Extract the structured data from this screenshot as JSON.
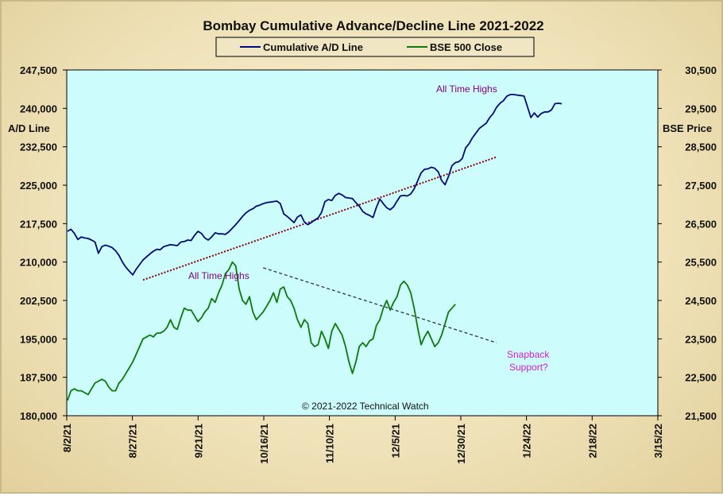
{
  "chart_data": {
    "type": "line",
    "title": "Bombay Cumulative Advance/Decline Line 2021-2022",
    "y_left_label": "A/D Line",
    "y_right_label": "BSE Price",
    "y_left_lim": [
      180000,
      247500
    ],
    "y_right_lim": [
      21500,
      30500
    ],
    "y_left_ticks": [
      "247,500",
      "240,000",
      "232,500",
      "225,000",
      "217,500",
      "210,000",
      "202,500",
      "195,000",
      "187,500",
      "180,000"
    ],
    "y_right_ticks": [
      "30,500",
      "29,500",
      "28,500",
      "27,500",
      "26,500",
      "25,500",
      "24,500",
      "23,500",
      "22,500",
      "21,500"
    ],
    "x_ticks": [
      "8/2/21",
      "8/27/21",
      "9/21/21",
      "10/16/21",
      "11/10/21",
      "12/5/21",
      "12/30/21",
      "1/24/22",
      "2/18/22",
      "3/15/22"
    ],
    "x_lim": [
      "8/2/21",
      "3/15/22"
    ],
    "plot_bg": "#ccfcfc",
    "grid": false,
    "legend": "top-center",
    "copyright": "© 2021-2022  Technical Watch",
    "series": [
      {
        "name": "Cumulative A/D Line",
        "axis": "left",
        "color": "#000a78",
        "points": [
          [
            0,
            216000
          ],
          [
            1,
            216400
          ],
          [
            2,
            215600
          ],
          [
            3,
            214400
          ],
          [
            4,
            214900
          ],
          [
            5,
            214700
          ],
          [
            6,
            214600
          ],
          [
            7,
            214300
          ],
          [
            8,
            213900
          ],
          [
            9,
            211700
          ],
          [
            10,
            213000
          ],
          [
            11,
            213300
          ],
          [
            12,
            213100
          ],
          [
            13,
            212800
          ],
          [
            14,
            212200
          ],
          [
            15,
            211300
          ],
          [
            16,
            210000
          ],
          [
            17,
            209000
          ],
          [
            18,
            208200
          ],
          [
            19,
            207500
          ],
          [
            20,
            208600
          ],
          [
            21,
            209500
          ],
          [
            22,
            210400
          ],
          [
            23,
            211000
          ],
          [
            24,
            211600
          ],
          [
            25,
            212100
          ],
          [
            26,
            212500
          ],
          [
            27,
            212400
          ],
          [
            28,
            213000
          ],
          [
            29,
            213200
          ],
          [
            30,
            213400
          ],
          [
            31,
            213300
          ],
          [
            32,
            213200
          ],
          [
            33,
            213900
          ],
          [
            34,
            214000
          ],
          [
            35,
            214300
          ],
          [
            36,
            214200
          ],
          [
            37,
            215200
          ],
          [
            38,
            216000
          ],
          [
            39,
            215600
          ],
          [
            40,
            214700
          ],
          [
            41,
            214300
          ],
          [
            42,
            214900
          ],
          [
            43,
            215700
          ],
          [
            44,
            215500
          ],
          [
            45,
            215500
          ],
          [
            46,
            215400
          ],
          [
            47,
            215900
          ],
          [
            48,
            216600
          ],
          [
            49,
            217300
          ],
          [
            50,
            218100
          ],
          [
            51,
            218900
          ],
          [
            52,
            219600
          ],
          [
            53,
            220100
          ],
          [
            54,
            220400
          ],
          [
            55,
            220900
          ],
          [
            56,
            221100
          ],
          [
            57,
            221400
          ],
          [
            58,
            221600
          ],
          [
            59,
            221700
          ],
          [
            60,
            221800
          ],
          [
            61,
            221900
          ],
          [
            62,
            221400
          ],
          [
            63,
            219400
          ],
          [
            64,
            218900
          ],
          [
            65,
            218300
          ],
          [
            66,
            217700
          ],
          [
            67,
            218800
          ],
          [
            68,
            219200
          ],
          [
            69,
            217800
          ],
          [
            70,
            217300
          ],
          [
            71,
            217700
          ],
          [
            72,
            218200
          ],
          [
            73,
            218600
          ],
          [
            74,
            219700
          ],
          [
            75,
            221800
          ],
          [
            76,
            222200
          ],
          [
            77,
            222000
          ],
          [
            78,
            223000
          ],
          [
            79,
            223400
          ],
          [
            80,
            223100
          ],
          [
            81,
            222600
          ],
          [
            82,
            222500
          ],
          [
            83,
            222400
          ],
          [
            84,
            221600
          ],
          [
            85,
            220900
          ],
          [
            86,
            219900
          ],
          [
            87,
            219400
          ],
          [
            88,
            219100
          ],
          [
            89,
            218700
          ],
          [
            90,
            220700
          ],
          [
            91,
            222300
          ],
          [
            92,
            221400
          ],
          [
            93,
            220600
          ],
          [
            94,
            220200
          ],
          [
            95,
            220800
          ],
          [
            96,
            221900
          ],
          [
            97,
            222900
          ],
          [
            98,
            223000
          ],
          [
            99,
            222900
          ],
          [
            100,
            223300
          ],
          [
            101,
            224300
          ],
          [
            102,
            225800
          ],
          [
            103,
            227400
          ],
          [
            104,
            228100
          ],
          [
            105,
            228200
          ],
          [
            106,
            228500
          ],
          [
            107,
            228300
          ],
          [
            108,
            227600
          ],
          [
            109,
            225900
          ],
          [
            110,
            225100
          ],
          [
            111,
            226700
          ],
          [
            112,
            228800
          ],
          [
            113,
            229400
          ],
          [
            114,
            229600
          ],
          [
            115,
            230200
          ],
          [
            116,
            232300
          ],
          [
            117,
            233100
          ],
          [
            118,
            234300
          ],
          [
            119,
            235200
          ],
          [
            120,
            236100
          ],
          [
            121,
            236600
          ],
          [
            122,
            237100
          ],
          [
            123,
            238200
          ],
          [
            124,
            239000
          ],
          [
            125,
            240200
          ],
          [
            126,
            241000
          ],
          [
            127,
            241500
          ],
          [
            128,
            242400
          ],
          [
            129,
            242700
          ],
          [
            130,
            242700
          ],
          [
            131,
            242600
          ],
          [
            132,
            242500
          ],
          [
            133,
            242400
          ],
          [
            134,
            240300
          ],
          [
            135,
            238200
          ],
          [
            136,
            239100
          ],
          [
            137,
            238300
          ],
          [
            138,
            239000
          ],
          [
            139,
            239300
          ],
          [
            140,
            239300
          ],
          [
            141,
            239700
          ],
          [
            142,
            240900
          ],
          [
            143,
            241000
          ],
          [
            144,
            240900
          ]
        ]
      },
      {
        "name": "BSE 500 Close",
        "axis": "right",
        "color": "#0b7a0b",
        "points": [
          [
            0,
            21900
          ],
          [
            1,
            22150
          ],
          [
            2,
            22200
          ],
          [
            3,
            22150
          ],
          [
            4,
            22150
          ],
          [
            5,
            22100
          ],
          [
            6,
            22050
          ],
          [
            7,
            22200
          ],
          [
            8,
            22350
          ],
          [
            9,
            22400
          ],
          [
            10,
            22450
          ],
          [
            11,
            22400
          ],
          [
            12,
            22250
          ],
          [
            13,
            22150
          ],
          [
            14,
            22150
          ],
          [
            15,
            22350
          ],
          [
            16,
            22450
          ],
          [
            17,
            22600
          ],
          [
            18,
            22750
          ],
          [
            19,
            22900
          ],
          [
            20,
            23100
          ],
          [
            21,
            23300
          ],
          [
            22,
            23500
          ],
          [
            23,
            23550
          ],
          [
            24,
            23600
          ],
          [
            25,
            23550
          ],
          [
            26,
            23650
          ],
          [
            27,
            23650
          ],
          [
            28,
            23700
          ],
          [
            29,
            23800
          ],
          [
            30,
            24000
          ],
          [
            31,
            23800
          ],
          [
            32,
            23750
          ],
          [
            33,
            24050
          ],
          [
            34,
            24300
          ],
          [
            35,
            24250
          ],
          [
            36,
            24250
          ],
          [
            37,
            24100
          ],
          [
            38,
            23950
          ],
          [
            39,
            24050
          ],
          [
            40,
            24200
          ],
          [
            41,
            24300
          ],
          [
            42,
            24550
          ],
          [
            43,
            24450
          ],
          [
            44,
            24700
          ],
          [
            45,
            24900
          ],
          [
            46,
            25200
          ],
          [
            47,
            25300
          ],
          [
            48,
            25500
          ],
          [
            49,
            25400
          ],
          [
            50,
            24800
          ],
          [
            51,
            24500
          ],
          [
            52,
            24400
          ],
          [
            53,
            24600
          ],
          [
            54,
            24200
          ],
          [
            55,
            24000
          ],
          [
            56,
            24100
          ],
          [
            57,
            24200
          ],
          [
            58,
            24350
          ],
          [
            59,
            24500
          ],
          [
            60,
            24700
          ],
          [
            61,
            24450
          ],
          [
            62,
            24800
          ],
          [
            63,
            24850
          ],
          [
            64,
            24600
          ],
          [
            65,
            24500
          ],
          [
            66,
            24300
          ],
          [
            67,
            24000
          ],
          [
            68,
            23800
          ],
          [
            69,
            24000
          ],
          [
            70,
            23900
          ],
          [
            71,
            23400
          ],
          [
            72,
            23300
          ],
          [
            73,
            23350
          ],
          [
            74,
            23700
          ],
          [
            75,
            23500
          ],
          [
            76,
            23250
          ],
          [
            77,
            23700
          ],
          [
            78,
            23900
          ],
          [
            79,
            23750
          ],
          [
            80,
            23600
          ],
          [
            81,
            23300
          ],
          [
            82,
            22900
          ],
          [
            83,
            22600
          ],
          [
            84,
            22900
          ],
          [
            85,
            23300
          ],
          [
            86,
            23400
          ],
          [
            87,
            23300
          ],
          [
            88,
            23450
          ],
          [
            89,
            23500
          ],
          [
            90,
            23850
          ],
          [
            91,
            24000
          ],
          [
            92,
            24300
          ],
          [
            93,
            24500
          ],
          [
            94,
            24250
          ],
          [
            95,
            24450
          ],
          [
            96,
            24600
          ],
          [
            97,
            24900
          ],
          [
            98,
            25000
          ],
          [
            99,
            24900
          ],
          [
            100,
            24700
          ],
          [
            101,
            24300
          ],
          [
            102,
            23800
          ],
          [
            103,
            23350
          ],
          [
            104,
            23550
          ],
          [
            105,
            23700
          ],
          [
            106,
            23500
          ],
          [
            107,
            23300
          ],
          [
            108,
            23400
          ],
          [
            109,
            23600
          ],
          [
            110,
            23900
          ],
          [
            111,
            24200
          ],
          [
            112,
            24300
          ],
          [
            113,
            24400
          ]
        ]
      }
    ],
    "trendlines": [
      {
        "axis": "left",
        "style": "dotted",
        "color": "#8b0000",
        "from": [
          22,
          206500
        ],
        "to": [
          125,
          230500
        ]
      },
      {
        "axis": "right",
        "style": "dashed",
        "color": "#333333",
        "from": [
          57,
          25350
        ],
        "to": [
          125,
          23400
        ]
      }
    ],
    "annotations": [
      {
        "text": "All Time Highs",
        "color": "#800080"
      },
      {
        "text": "All Time Highs",
        "color": "#800080"
      },
      {
        "text": "Snapback",
        "color": "#d020d0"
      },
      {
        "text": "Support?",
        "color": "#d020d0"
      }
    ]
  }
}
